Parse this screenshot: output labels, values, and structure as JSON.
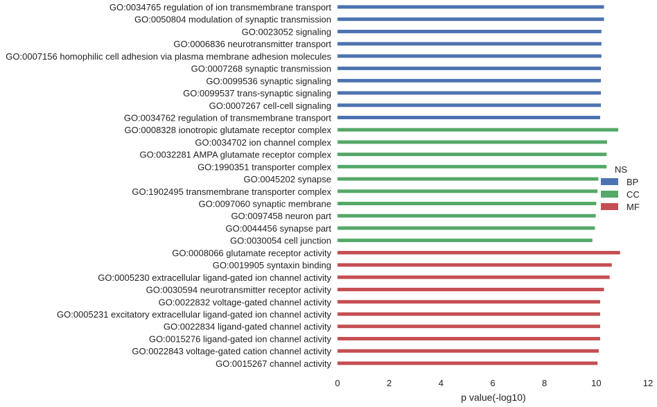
{
  "chart_data": {
    "type": "bar",
    "orientation": "horizontal",
    "xlabel": "p value(-log10)",
    "ylabel": "",
    "xlim": [
      0,
      12
    ],
    "xticks": [
      "0",
      "2",
      "4",
      "6",
      "8",
      "10",
      "12"
    ],
    "grid": false,
    "legend": {
      "title": "NS",
      "placement": "right",
      "entries": [
        {
          "name": "BP",
          "color": "#4c72b0"
        },
        {
          "name": "CC",
          "color": "#55a868"
        },
        {
          "name": "MF",
          "color": "#c44e52"
        }
      ]
    },
    "categories": [
      "GO:0034765 regulation of ion transmembrane transport",
      "GO:0050804 modulation of synaptic transmission",
      "GO:0023052 signaling",
      "GO:0006836 neurotransmitter transport",
      "GO:0007156 homophilic cell adhesion via plasma membrane adhesion molecules",
      "GO:0007268 synaptic transmission",
      "GO:0099536 synaptic signaling",
      "GO:0099537 trans-synaptic signaling",
      "GO:0007267 cell-cell signaling",
      "GO:0034762 regulation of transmembrane transport",
      "GO:0008328 ionotropic glutamate receptor complex",
      "GO:0034702 ion channel complex",
      "GO:0032281 AMPA glutamate receptor complex",
      "GO:1990351 transporter complex",
      "GO:0045202 synapse",
      "GO:1902495 transmembrane transporter complex",
      "GO:0097060 synaptic membrane",
      "GO:0097458 neuron part",
      "GO:0044456 synapse part",
      "GO:0030054 cell junction",
      "GO:0008066 glutamate receptor activity",
      "GO:0019905 syntaxin binding",
      "GO:0005230 extracellular ligand-gated ion channel activity",
      "GO:0030594 neurotransmitter receptor activity",
      "GO:0022832 voltage-gated channel activity",
      "GO:0005231 excitatory extracellular ligand-gated ion channel activity",
      "GO:0022834 ligand-gated channel activity",
      "GO:0015276 ligand-gated ion channel activity",
      "GO:0022843 voltage-gated cation channel activity",
      "GO:0015267 channel activity"
    ],
    "groups": [
      "BP",
      "BP",
      "BP",
      "BP",
      "BP",
      "BP",
      "BP",
      "BP",
      "BP",
      "BP",
      "CC",
      "CC",
      "CC",
      "CC",
      "CC",
      "CC",
      "CC",
      "CC",
      "CC",
      "CC",
      "MF",
      "MF",
      "MF",
      "MF",
      "MF",
      "MF",
      "MF",
      "MF",
      "MF",
      "MF"
    ],
    "values": [
      10.3,
      10.3,
      10.2,
      10.2,
      10.2,
      10.18,
      10.18,
      10.18,
      10.18,
      10.15,
      10.85,
      10.42,
      10.4,
      10.4,
      10.08,
      10.05,
      10.0,
      9.98,
      9.95,
      9.85,
      10.92,
      10.6,
      10.52,
      10.3,
      10.15,
      10.15,
      10.15,
      10.15,
      10.1,
      10.05
    ]
  }
}
